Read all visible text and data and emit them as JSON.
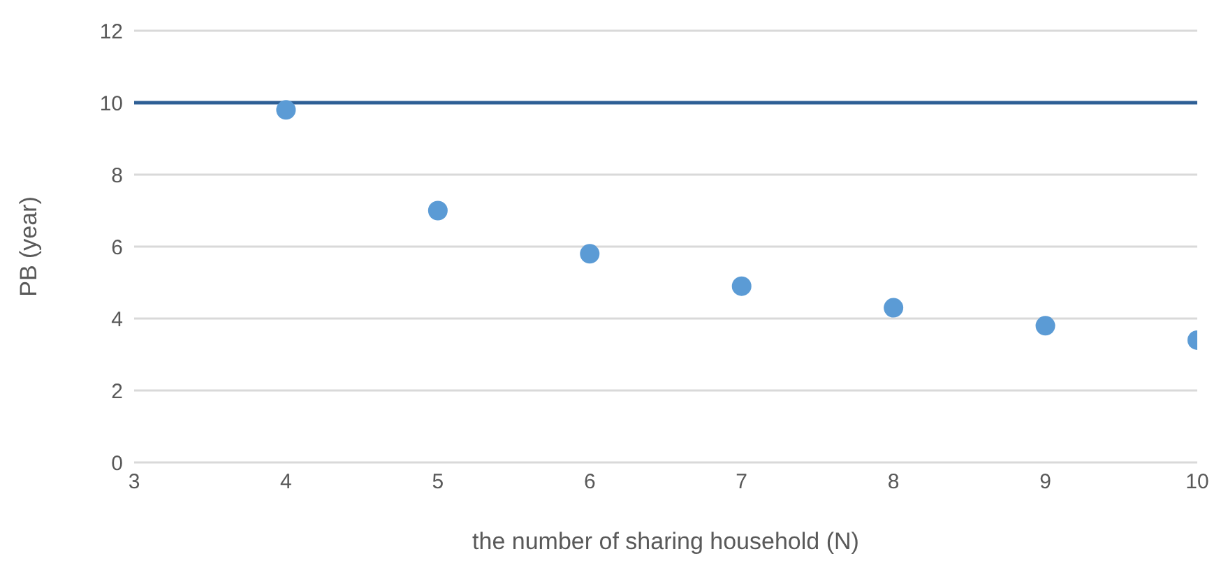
{
  "chart_data": {
    "type": "scatter",
    "xlabel": "the number of sharing household (N)",
    "ylabel": "PB (year)",
    "x": [
      4,
      5,
      6,
      7,
      8,
      9,
      10
    ],
    "values": [
      9.8,
      7.0,
      5.8,
      4.9,
      4.3,
      3.8,
      3.4
    ],
    "color": "#5b9bd5",
    "xlim": [
      3,
      10
    ],
    "xticks": [
      3,
      4,
      5,
      6,
      7,
      8,
      9,
      10
    ],
    "ylim": [
      0,
      12
    ],
    "yticks": [
      0,
      2,
      4,
      6,
      8,
      10,
      12
    ],
    "grid": "y",
    "marker": "circle",
    "ref_lines": [
      {
        "axis": "y",
        "value": 10,
        "color": "#2e5f95"
      }
    ]
  }
}
